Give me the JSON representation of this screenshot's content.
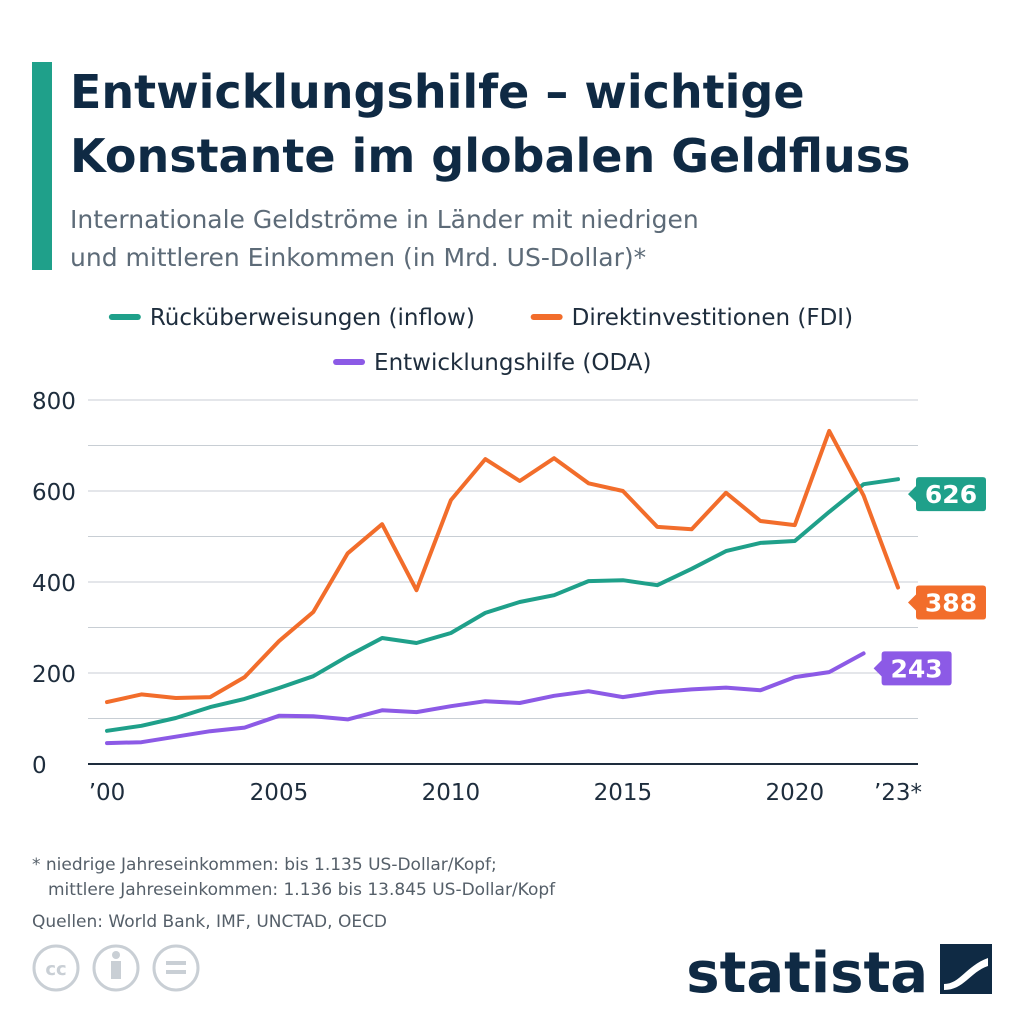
{
  "chart_data": {
    "type": "line",
    "title": [
      "Entwicklungshilfe – wichtige",
      "Konstante im globalen Geldfluss"
    ],
    "subtitle": [
      "Internationale Geldströme in Länder mit niedrigen",
      "und mittleren Einkommen (in Mrd. US-Dollar)*"
    ],
    "x": [
      2000,
      2001,
      2002,
      2003,
      2004,
      2005,
      2006,
      2007,
      2008,
      2009,
      2010,
      2011,
      2012,
      2013,
      2014,
      2015,
      2016,
      2017,
      2018,
      2019,
      2020,
      2021,
      2022,
      2023
    ],
    "series": [
      {
        "name": "Rücküberweisungen (inflow)",
        "color": "#1fa08a",
        "values": [
          73,
          84,
          101,
          125,
          143,
          167,
          193,
          237,
          277,
          266,
          288,
          332,
          356,
          371,
          402,
          404,
          393,
          429,
          468,
          486,
          490,
          554,
          615,
          626
        ]
      },
      {
        "name": "Direktinvestitionen (FDI)",
        "color": "#f26d2b",
        "values": [
          136,
          153,
          145,
          147,
          191,
          270,
          334,
          463,
          527,
          382,
          580,
          670,
          622,
          672,
          617,
          600,
          521,
          516,
          596,
          534,
          525,
          732,
          590,
          388
        ]
      },
      {
        "name": "Entwicklungshilfe (ODA)",
        "color": "#8c5ae6",
        "values": [
          46,
          48,
          60,
          72,
          80,
          106,
          105,
          98,
          118,
          114,
          127,
          138,
          134,
          150,
          160,
          147,
          158,
          164,
          168,
          162,
          191,
          202,
          243,
          null
        ]
      }
    ],
    "xlim": [
      2000,
      2023
    ],
    "xticks": [
      {
        "value": 2000,
        "label": "’00"
      },
      2005,
      2010,
      2015,
      2020,
      {
        "value": 2023,
        "label": "’23*"
      }
    ],
    "ylim": [
      0,
      800
    ],
    "yticks": [
      0,
      200,
      400,
      600,
      800
    ],
    "y_minor_ticks": [
      100,
      300,
      500,
      700
    ],
    "grid": true,
    "legend": "top",
    "footnote": [
      "* niedrige Jahreseinkommen: bis 1.135 US-Dollar/Kopf;",
      "mittlere Jahreseinkommen: 1.136 bis 13.845 US-Dollar/Kopf"
    ],
    "source": "Quellen: World Bank, IMF, UNCTAD, OECD",
    "brand": "statista"
  }
}
